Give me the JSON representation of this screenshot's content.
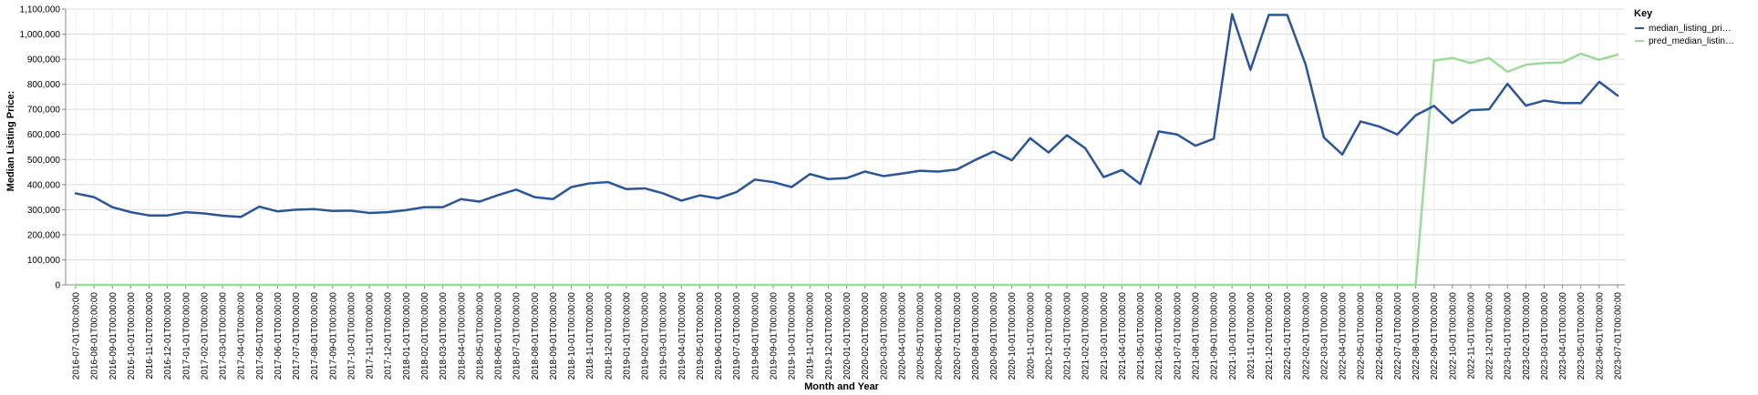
{
  "chart_data": {
    "type": "line",
    "xlabel": "Month and Year",
    "ylabel": "Median Listing Price:",
    "ylim": [
      0,
      1100000
    ],
    "yticks": [
      "0",
      "100,000",
      "200,000",
      "300,000",
      "400,000",
      "500,000",
      "600,000",
      "700,000",
      "800,000",
      "900,000",
      "1,000,000",
      "1,100,000"
    ],
    "grid": true,
    "legend": {
      "title": "Key",
      "position": "top-right",
      "entries": [
        "median_listing_pri…",
        "pred_median_listin…"
      ]
    },
    "x": [
      "2016-07-01T00:00:00",
      "2016-08-01T00:00:00",
      "2016-09-01T00:00:00",
      "2016-10-01T00:00:00",
      "2016-11-01T00:00:00",
      "2016-12-01T00:00:00",
      "2017-01-01T00:00:00",
      "2017-02-01T00:00:00",
      "2017-03-01T00:00:00",
      "2017-04-01T00:00:00",
      "2017-05-01T00:00:00",
      "2017-06-01T00:00:00",
      "2017-07-01T00:00:00",
      "2017-08-01T00:00:00",
      "2017-09-01T00:00:00",
      "2017-10-01T00:00:00",
      "2017-11-01T00:00:00",
      "2017-12-01T00:00:00",
      "2018-01-01T00:00:00",
      "2018-02-01T00:00:00",
      "2018-03-01T00:00:00",
      "2018-04-01T00:00:00",
      "2018-05-01T00:00:00",
      "2018-06-01T00:00:00",
      "2018-07-01T00:00:00",
      "2018-08-01T00:00:00",
      "2018-09-01T00:00:00",
      "2018-10-01T00:00:00",
      "2018-11-01T00:00:00",
      "2018-12-01T00:00:00",
      "2019-01-01T00:00:00",
      "2019-02-01T00:00:00",
      "2019-03-01T00:00:00",
      "2019-04-01T00:00:00",
      "2019-05-01T00:00:00",
      "2019-06-01T00:00:00",
      "2019-07-01T00:00:00",
      "2019-08-01T00:00:00",
      "2019-09-01T00:00:00",
      "2019-10-01T00:00:00",
      "2019-11-01T00:00:00",
      "2019-12-01T00:00:00",
      "2020-01-01T00:00:00",
      "2020-02-01T00:00:00",
      "2020-03-01T00:00:00",
      "2020-04-01T00:00:00",
      "2020-05-01T00:00:00",
      "2020-06-01T00:00:00",
      "2020-07-01T00:00:00",
      "2020-08-01T00:00:00",
      "2020-09-01T00:00:00",
      "2020-10-01T00:00:00",
      "2020-11-01T00:00:00",
      "2020-12-01T00:00:00",
      "2021-01-01T00:00:00",
      "2021-02-01T00:00:00",
      "2021-03-01T00:00:00",
      "2021-04-01T00:00:00",
      "2021-05-01T00:00:00",
      "2021-06-01T00:00:00",
      "2021-07-01T00:00:00",
      "2021-08-01T00:00:00",
      "2021-09-01T00:00:00",
      "2021-10-01T00:00:00",
      "2021-11-01T00:00:00",
      "2021-12-01T00:00:00",
      "2022-01-01T00:00:00",
      "2022-02-01T00:00:00",
      "2022-03-01T00:00:00",
      "2022-04-01T00:00:00",
      "2022-05-01T00:00:00",
      "2022-06-01T00:00:00",
      "2022-07-01T00:00:00",
      "2022-08-01T00:00:00",
      "2022-09-01T00:00:00",
      "2022-10-01T00:00:00",
      "2022-11-01T00:00:00",
      "2022-12-01T00:00:00",
      "2023-01-01T00:00:00",
      "2023-02-01T00:00:00",
      "2023-03-01T00:00:00",
      "2023-04-01T00:00:00",
      "2023-05-01T00:00:00",
      "2023-06-01T00:00:00",
      "2023-07-01T00:00:00"
    ],
    "series": [
      {
        "name": "median_listing_pri…",
        "color": "#2c5597",
        "values": [
          365000,
          350000,
          310000,
          290000,
          277000,
          277000,
          290000,
          285000,
          276000,
          271000,
          312000,
          293000,
          300000,
          302000,
          295000,
          296000,
          287000,
          290000,
          298000,
          310000,
          310000,
          342000,
          332000,
          358000,
          380000,
          350000,
          342000,
          390000,
          405000,
          410000,
          382000,
          385000,
          365000,
          336000,
          357000,
          345000,
          370000,
          420000,
          410000,
          390000,
          442000,
          422000,
          426000,
          452000,
          434000,
          444000,
          455000,
          452000,
          460000,
          498000,
          532000,
          497000,
          585000,
          528000,
          597000,
          545000,
          430000,
          458000,
          402000,
          612000,
          600000,
          555000,
          583000,
          1080000,
          858000,
          1077000,
          1077000,
          880000,
          588000,
          520000,
          652000,
          632000,
          600000,
          676000,
          714000,
          645000,
          697000,
          700000,
          802000,
          715000,
          735000,
          725000,
          725000,
          810000,
          755000
        ]
      },
      {
        "name": "pred_median_listin…",
        "color": "#9fd99a",
        "values": [
          0,
          0,
          0,
          0,
          0,
          0,
          0,
          0,
          0,
          0,
          0,
          0,
          0,
          0,
          0,
          0,
          0,
          0,
          0,
          0,
          0,
          0,
          0,
          0,
          0,
          0,
          0,
          0,
          0,
          0,
          0,
          0,
          0,
          0,
          0,
          0,
          0,
          0,
          0,
          0,
          0,
          0,
          0,
          0,
          0,
          0,
          0,
          0,
          0,
          0,
          0,
          0,
          0,
          0,
          0,
          0,
          0,
          0,
          0,
          0,
          0,
          0,
          0,
          0,
          0,
          0,
          0,
          0,
          0,
          0,
          0,
          0,
          0,
          0,
          895000,
          905000,
          885000,
          905000,
          850000,
          878000,
          885000,
          887000,
          922000,
          898000,
          918000
        ]
      }
    ]
  }
}
